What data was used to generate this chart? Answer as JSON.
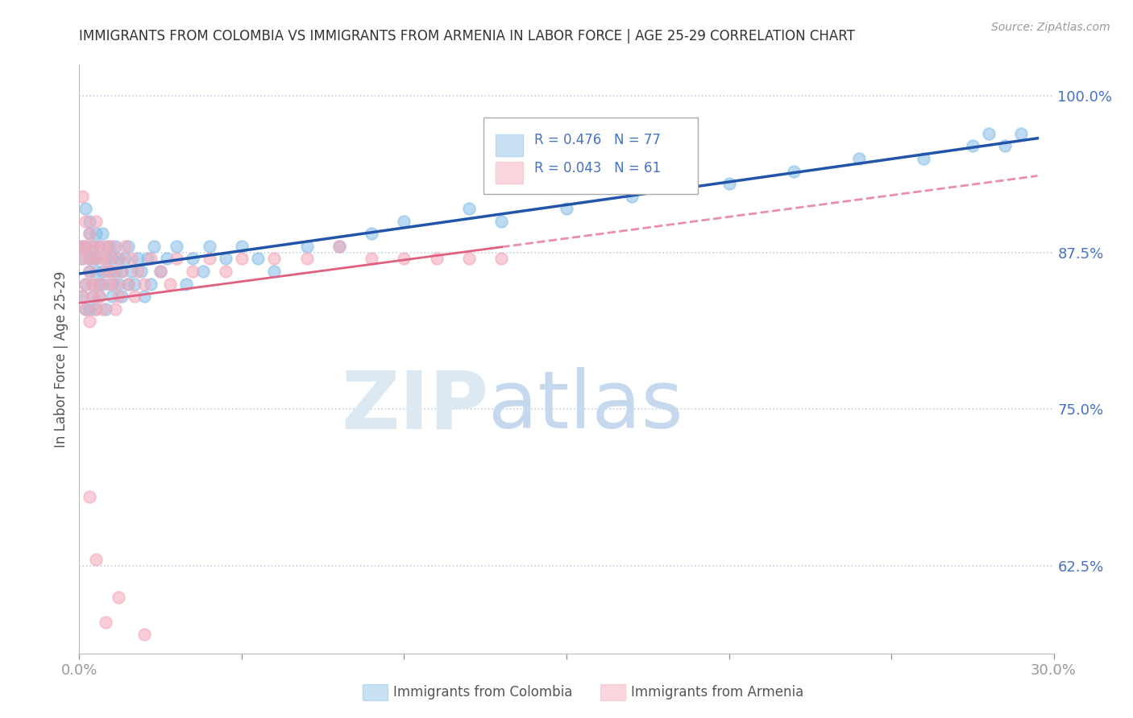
{
  "title": "IMMIGRANTS FROM COLOMBIA VS IMMIGRANTS FROM ARMENIA IN LABOR FORCE | AGE 25-29 CORRELATION CHART",
  "source_text": "Source: ZipAtlas.com",
  "ylabel": "In Labor Force | Age 25-29",
  "watermark_zip": "ZIP",
  "watermark_atlas": "atlas",
  "colombia_R": 0.476,
  "colombia_N": 77,
  "armenia_R": 0.043,
  "armenia_N": 61,
  "xlim": [
    0.0,
    0.3
  ],
  "ylim": [
    0.555,
    1.025
  ],
  "yticks": [
    0.625,
    0.75,
    0.875,
    1.0
  ],
  "ytick_labels": [
    "62.5%",
    "75.0%",
    "87.5%",
    "100.0%"
  ],
  "xticks": [
    0.0,
    0.05,
    0.1,
    0.15,
    0.2,
    0.25,
    0.3
  ],
  "colombia_color": "#85bfe8",
  "armenia_color": "#f4a8b8",
  "colombia_line_color": "#2255aa",
  "armenia_line_color": "#e06080",
  "tick_color": "#4472c4",
  "grid_color": "#c0d0e0",
  "background_color": "#ffffff",
  "colombia_x": [
    0.001,
    0.001,
    0.001,
    0.002,
    0.002,
    0.002,
    0.002,
    0.003,
    0.003,
    0.003,
    0.003,
    0.003,
    0.004,
    0.004,
    0.004,
    0.004,
    0.005,
    0.005,
    0.005,
    0.005,
    0.006,
    0.006,
    0.006,
    0.007,
    0.007,
    0.007,
    0.008,
    0.008,
    0.009,
    0.009,
    0.01,
    0.01,
    0.01,
    0.011,
    0.011,
    0.012,
    0.012,
    0.013,
    0.013,
    0.014,
    0.015,
    0.015,
    0.016,
    0.017,
    0.018,
    0.019,
    0.02,
    0.021,
    0.022,
    0.023,
    0.025,
    0.027,
    0.03,
    0.033,
    0.035,
    0.038,
    0.04,
    0.045,
    0.05,
    0.055,
    0.06,
    0.07,
    0.08,
    0.09,
    0.1,
    0.12,
    0.13,
    0.15,
    0.17,
    0.2,
    0.22,
    0.24,
    0.26,
    0.275,
    0.28,
    0.285,
    0.29
  ],
  "colombia_y": [
    0.88,
    0.84,
    0.87,
    0.85,
    0.88,
    0.91,
    0.83,
    0.86,
    0.89,
    0.87,
    0.83,
    0.9,
    0.85,
    0.88,
    0.84,
    0.87,
    0.86,
    0.89,
    0.83,
    0.87,
    0.85,
    0.88,
    0.84,
    0.86,
    0.89,
    0.85,
    0.83,
    0.87,
    0.86,
    0.88,
    0.85,
    0.87,
    0.84,
    0.86,
    0.88,
    0.85,
    0.87,
    0.86,
    0.84,
    0.87,
    0.85,
    0.88,
    0.86,
    0.85,
    0.87,
    0.86,
    0.84,
    0.87,
    0.85,
    0.88,
    0.86,
    0.87,
    0.88,
    0.85,
    0.87,
    0.86,
    0.88,
    0.87,
    0.88,
    0.87,
    0.86,
    0.88,
    0.88,
    0.89,
    0.9,
    0.91,
    0.9,
    0.91,
    0.92,
    0.93,
    0.94,
    0.95,
    0.95,
    0.96,
    0.97,
    0.96,
    0.97
  ],
  "armenia_x": [
    0.001,
    0.001,
    0.001,
    0.001,
    0.002,
    0.002,
    0.002,
    0.002,
    0.003,
    0.003,
    0.003,
    0.003,
    0.004,
    0.004,
    0.004,
    0.005,
    0.005,
    0.005,
    0.006,
    0.006,
    0.006,
    0.007,
    0.007,
    0.008,
    0.008,
    0.009,
    0.009,
    0.01,
    0.01,
    0.011,
    0.011,
    0.012,
    0.012,
    0.013,
    0.014,
    0.015,
    0.016,
    0.017,
    0.018,
    0.02,
    0.022,
    0.025,
    0.028,
    0.03,
    0.035,
    0.04,
    0.045,
    0.05,
    0.06,
    0.07,
    0.08,
    0.09,
    0.1,
    0.11,
    0.12,
    0.13,
    0.003,
    0.005,
    0.008,
    0.012,
    0.02
  ],
  "armenia_y": [
    0.87,
    0.84,
    0.88,
    0.92,
    0.85,
    0.88,
    0.83,
    0.9,
    0.86,
    0.89,
    0.82,
    0.87,
    0.84,
    0.88,
    0.85,
    0.83,
    0.87,
    0.9,
    0.85,
    0.88,
    0.84,
    0.87,
    0.83,
    0.86,
    0.88,
    0.85,
    0.87,
    0.86,
    0.88,
    0.85,
    0.83,
    0.87,
    0.84,
    0.86,
    0.88,
    0.85,
    0.87,
    0.84,
    0.86,
    0.85,
    0.87,
    0.86,
    0.85,
    0.87,
    0.86,
    0.87,
    0.86,
    0.87,
    0.87,
    0.87,
    0.88,
    0.87,
    0.87,
    0.87,
    0.87,
    0.87,
    0.68,
    0.63,
    0.58,
    0.6,
    0.57
  ]
}
